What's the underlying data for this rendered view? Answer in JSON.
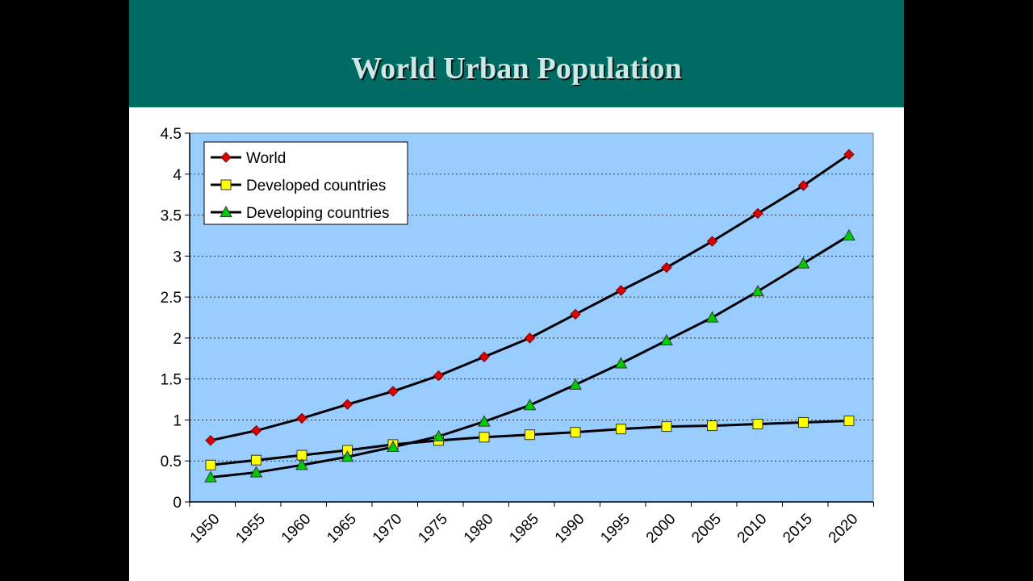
{
  "slide": {
    "title": "World Urban Population",
    "band_color": "#006b63",
    "title_color": "#cde9e6"
  },
  "chart_data": {
    "type": "line",
    "plot_background": "#99ccff",
    "x_tick_labels": [
      "1950",
      "1955",
      "1960",
      "1965",
      "1970",
      "1975",
      "1980",
      "1985",
      "1990",
      "1995",
      "2000",
      "2005",
      "2010",
      "2015",
      "2020"
    ],
    "x": [
      1950,
      1955,
      1960,
      1965,
      1970,
      1975,
      1980,
      1985,
      1990,
      1995,
      2000,
      2005,
      2010,
      2015,
      2020
    ],
    "ylim": [
      0,
      4.5
    ],
    "y_ticks": [
      0,
      0.5,
      1,
      1.5,
      2,
      2.5,
      3,
      3.5,
      4,
      4.5
    ],
    "y_tick_labels": [
      "0",
      "0.5",
      "1",
      "1.5",
      "2",
      "2.5",
      "3",
      "3.5",
      "4",
      "4.5"
    ],
    "grid": "horizontal dotted",
    "legend_position": "top-left",
    "series": [
      {
        "name": "World",
        "marker": "diamond",
        "color": "#dd0000",
        "values": [
          0.75,
          0.87,
          1.02,
          1.19,
          1.35,
          1.54,
          1.77,
          2.0,
          2.29,
          2.58,
          2.86,
          3.18,
          3.52,
          3.86,
          4.24
        ]
      },
      {
        "name": "Developed countries",
        "marker": "square",
        "color": "#ffff00",
        "values": [
          0.45,
          0.51,
          0.57,
          0.63,
          0.7,
          0.75,
          0.79,
          0.82,
          0.85,
          0.89,
          0.92,
          0.93,
          0.95,
          0.97,
          0.99
        ]
      },
      {
        "name": "Developing countries",
        "marker": "triangle",
        "color": "#00cc00",
        "values": [
          0.3,
          0.36,
          0.45,
          0.55,
          0.67,
          0.8,
          0.98,
          1.18,
          1.43,
          1.69,
          1.97,
          2.25,
          2.57,
          2.91,
          3.25
        ]
      }
    ]
  }
}
